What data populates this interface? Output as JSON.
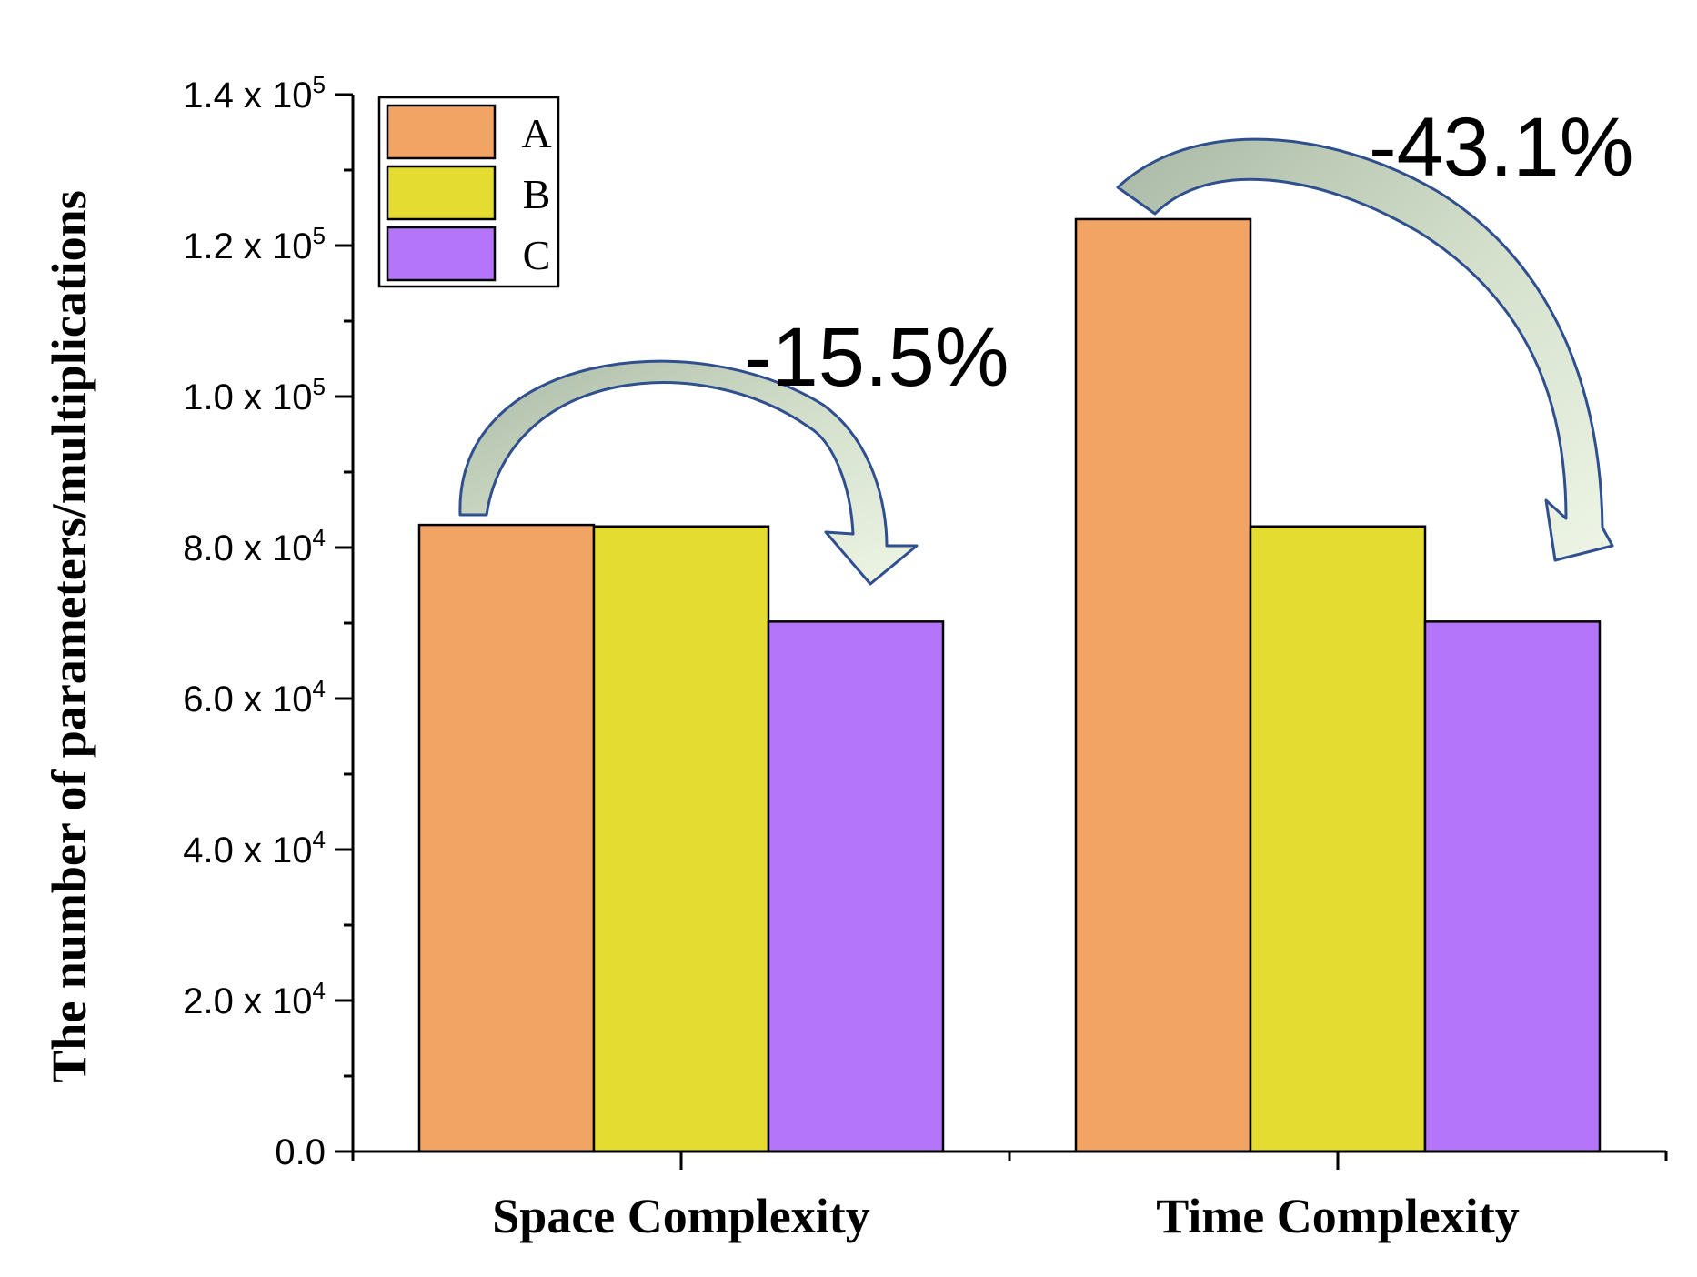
{
  "chart_data": {
    "type": "bar",
    "categories": [
      "Space Complexity",
      "Time Complexity"
    ],
    "series": [
      {
        "name": "A",
        "color": "#f2a465",
        "values": [
          83000,
          123500
        ]
      },
      {
        "name": "B",
        "color": "#e5dc32",
        "values": [
          82800,
          82800
        ]
      },
      {
        "name": "C",
        "color": "#b575fb",
        "values": [
          70200,
          70200
        ]
      }
    ],
    "title": "",
    "xlabel": "",
    "ylabel": "The number of parameters/multiplications",
    "ylim": [
      0,
      140000
    ],
    "yticks": [
      {
        "value": 0,
        "base": "0.0",
        "exp": ""
      },
      {
        "value": 20000,
        "base": "2.0 x 10",
        "exp": "4"
      },
      {
        "value": 40000,
        "base": "4.0 x 10",
        "exp": "4"
      },
      {
        "value": 60000,
        "base": "6.0 x 10",
        "exp": "4"
      },
      {
        "value": 80000,
        "base": "8.0 x 10",
        "exp": "4"
      },
      {
        "value": 100000,
        "base": "1.0 x 10",
        "exp": "5"
      },
      {
        "value": 120000,
        "base": "1.2 x 10",
        "exp": "5"
      },
      {
        "value": 140000,
        "base": "1.4 x 10",
        "exp": "5"
      }
    ],
    "legend_position": "top-left",
    "annotations": [
      {
        "text": "-15.5%",
        "category": "Space Complexity",
        "from_series": "A",
        "to_series": "C"
      },
      {
        "text": "-43.1%",
        "category": "Time Complexity",
        "from_series": "A",
        "to_series": "C"
      }
    ],
    "arrow_color": "#2f4f8f"
  }
}
